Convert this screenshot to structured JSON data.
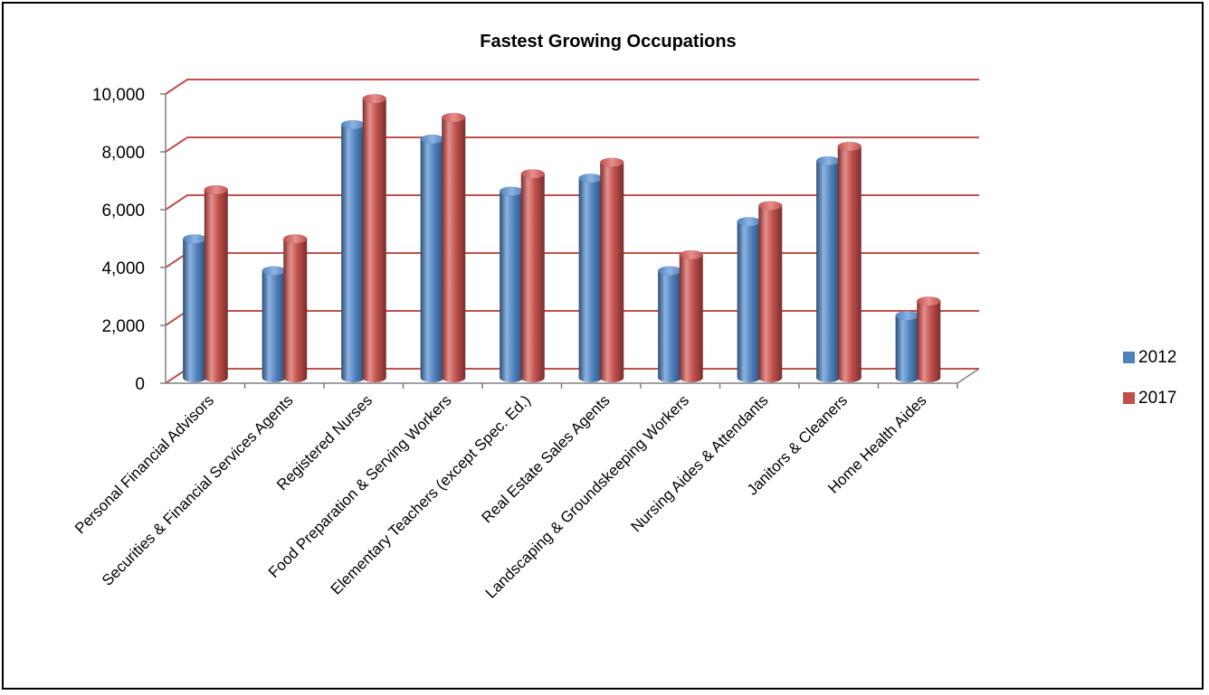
{
  "chart_data": {
    "type": "bar",
    "title": "Fastest Growing Occupations",
    "xlabel": "",
    "ylabel": "",
    "ylim": [
      0,
      10000
    ],
    "yticks": [
      "0",
      "2,000",
      "4,000",
      "6,000",
      "8,000",
      "10,000"
    ],
    "grid": true,
    "legend_position": "right",
    "categories": [
      "Personal Financial Advisors",
      "Securities & Financial Services Agents",
      "Registered Nurses",
      "Food Preparation & Serving Workers",
      "Elementary Teachers (except Spec. Ed.)",
      "Real Estate Sales Agents",
      "Landscaping & Groundskeeping Workers",
      "Nursing Aides & Attendants",
      "Janitors & Cleaners",
      "Home Health Aides"
    ],
    "series": [
      {
        "name": "2012",
        "color": "#4F81BD",
        "values": [
          4800,
          3700,
          8750,
          8250,
          6450,
          6900,
          3700,
          5400,
          7500,
          2150
        ]
      },
      {
        "name": "2017",
        "color": "#C0504D",
        "values": [
          6500,
          4800,
          9650,
          9000,
          7050,
          7450,
          4250,
          5950,
          8000,
          2650
        ]
      }
    ],
    "colors": {
      "gridline": "#C0504D",
      "axis": "#808080"
    }
  }
}
